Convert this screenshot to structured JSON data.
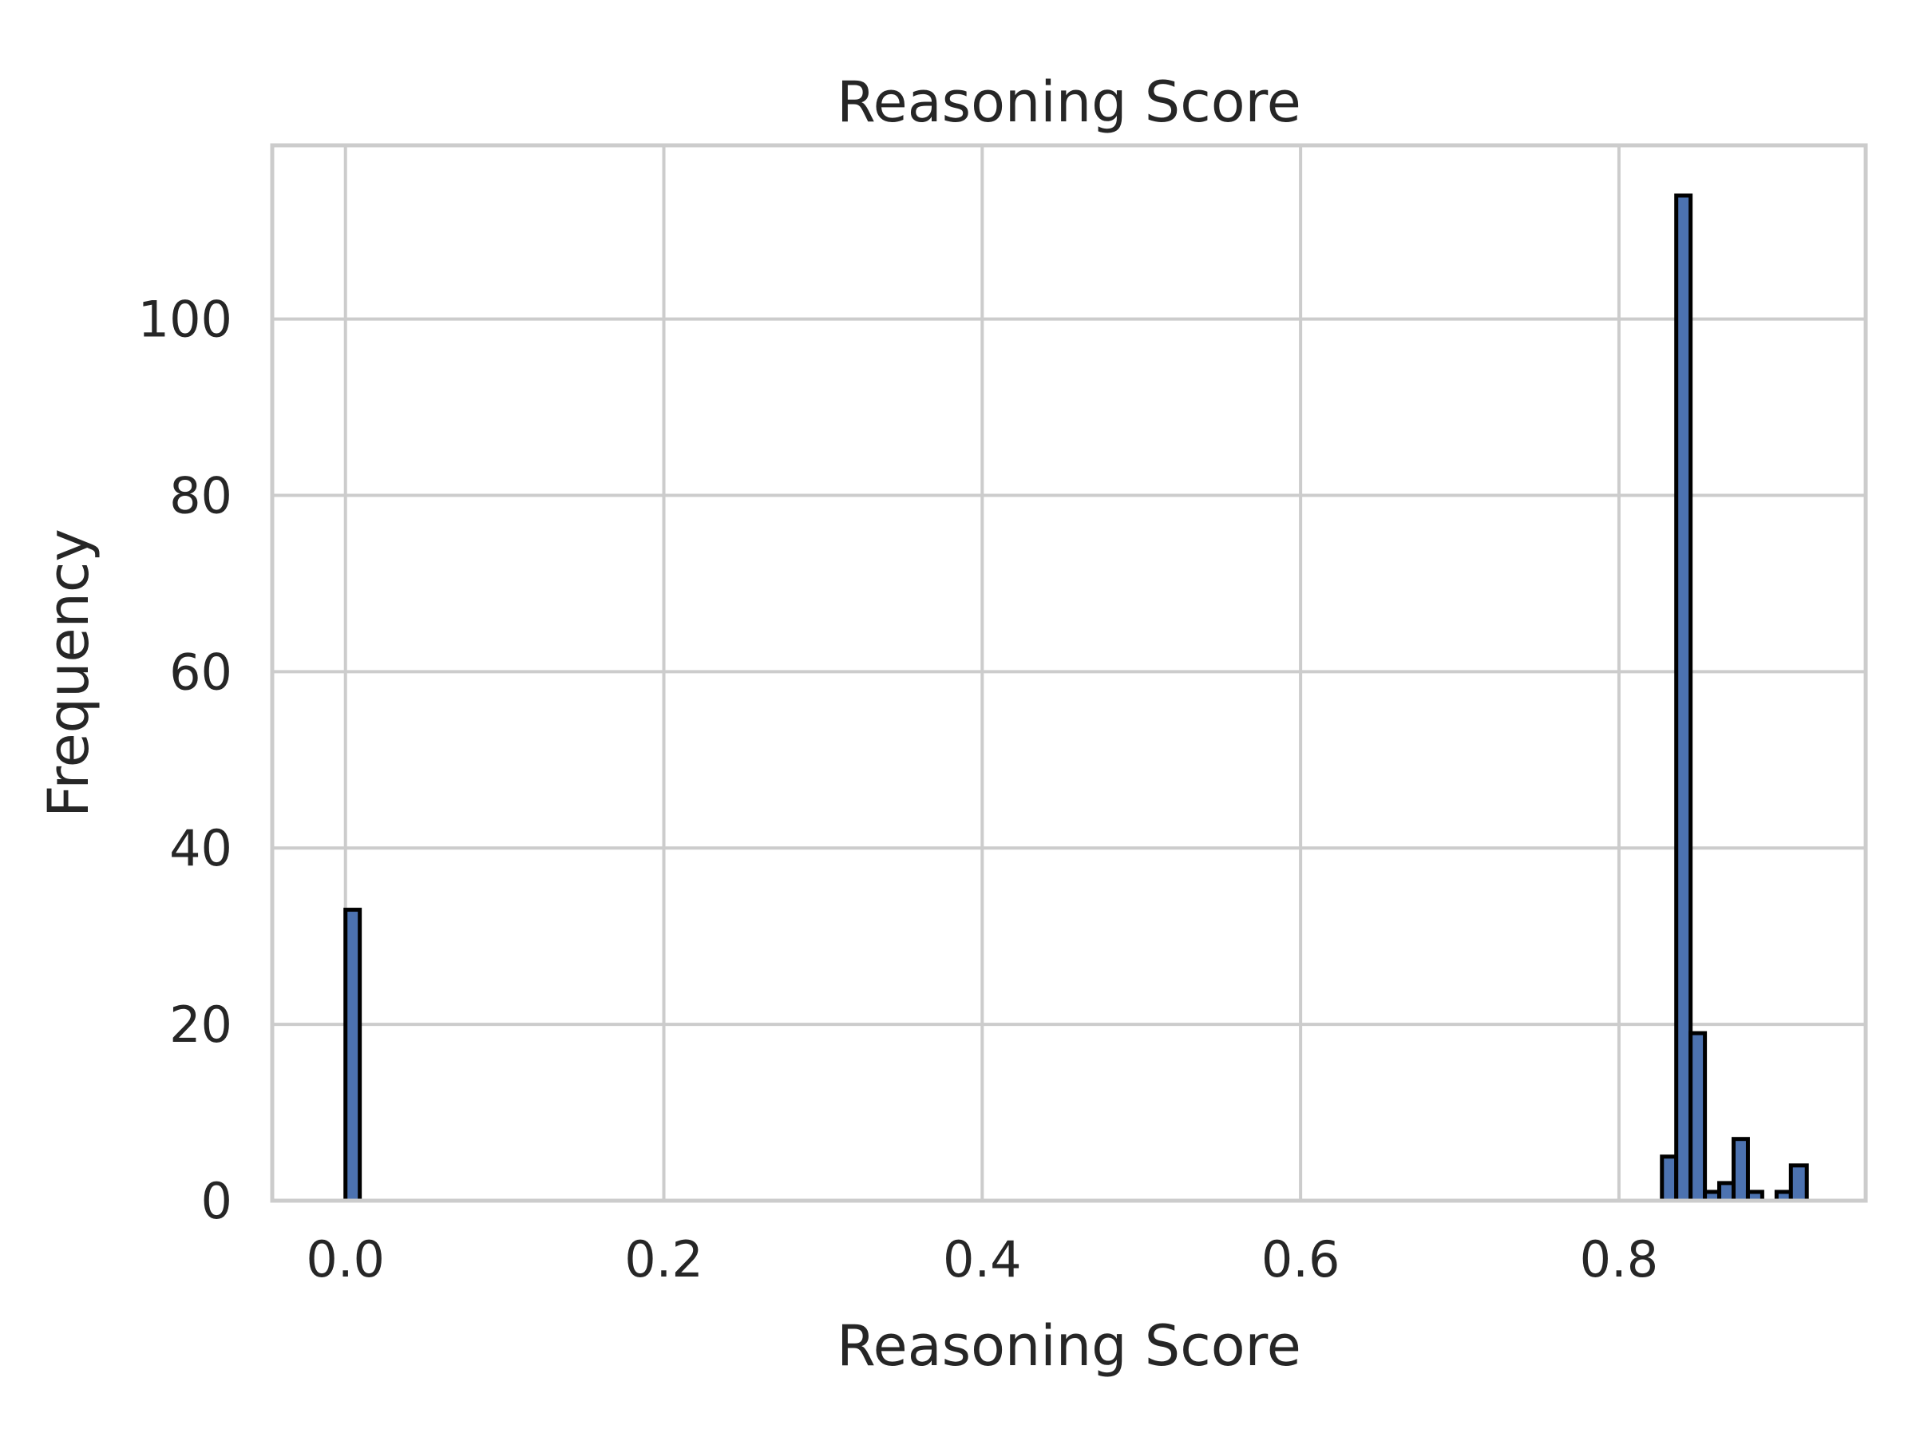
{
  "chart_data": {
    "type": "bar",
    "title": "Reasoning Score",
    "xlabel": "Reasoning Score",
    "ylabel": "Frequency",
    "xlim": [
      -0.046,
      0.955
    ],
    "ylim": [
      0,
      119.7
    ],
    "xticks": [
      {
        "value": 0.0,
        "label": "0.0"
      },
      {
        "value": 0.2,
        "label": "0.2"
      },
      {
        "value": 0.4,
        "label": "0.4"
      },
      {
        "value": 0.6,
        "label": "0.6"
      },
      {
        "value": 0.8,
        "label": "0.8"
      }
    ],
    "yticks": [
      {
        "value": 0,
        "label": "0"
      },
      {
        "value": 20,
        "label": "20"
      },
      {
        "value": 40,
        "label": "40"
      },
      {
        "value": 60,
        "label": "60"
      },
      {
        "value": 80,
        "label": "80"
      },
      {
        "value": 100,
        "label": "100"
      }
    ],
    "bar_color": "#4c72b0",
    "edge_color": "#000000",
    "grid": true,
    "bins": [
      {
        "x0": 0.0,
        "x1": 0.009,
        "count": 33
      },
      {
        "x0": 0.827,
        "x1": 0.836,
        "count": 5
      },
      {
        "x0": 0.836,
        "x1": 0.845,
        "count": 114
      },
      {
        "x0": 0.845,
        "x1": 0.854,
        "count": 19
      },
      {
        "x0": 0.854,
        "x1": 0.863,
        "count": 1
      },
      {
        "x0": 0.863,
        "x1": 0.872,
        "count": 2
      },
      {
        "x0": 0.872,
        "x1": 0.881,
        "count": 7
      },
      {
        "x0": 0.881,
        "x1": 0.89,
        "count": 1
      },
      {
        "x0": 0.899,
        "x1": 0.908,
        "count": 1
      },
      {
        "x0": 0.908,
        "x1": 0.918,
        "count": 4
      }
    ]
  }
}
